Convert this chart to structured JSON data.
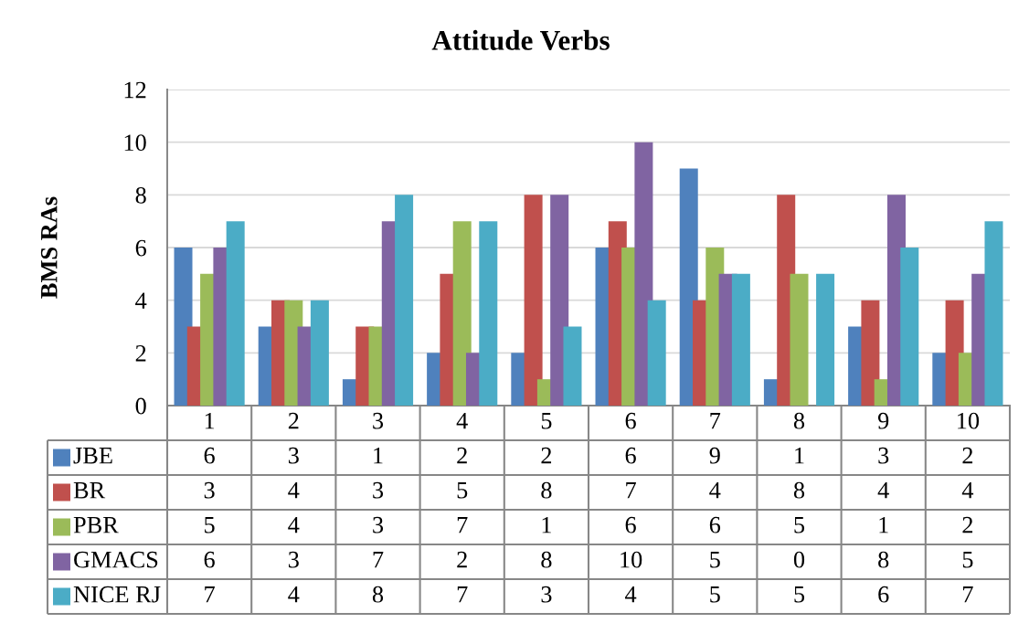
{
  "chart_data": {
    "type": "bar",
    "title": "Attitude Verbs",
    "ylabel": "BMS RAs",
    "categories": [
      "1",
      "2",
      "3",
      "4",
      "5",
      "6",
      "7",
      "8",
      "9",
      "10"
    ],
    "series": [
      {
        "name": "JBE",
        "color": "#4f81bd",
        "values": [
          6,
          3,
          1,
          2,
          2,
          6,
          9,
          1,
          3,
          2
        ]
      },
      {
        "name": "BR",
        "color": "#c0504d",
        "values": [
          3,
          4,
          3,
          5,
          8,
          7,
          4,
          8,
          4,
          4
        ]
      },
      {
        "name": "PBR",
        "color": "#9bbb59",
        "values": [
          5,
          4,
          3,
          7,
          1,
          6,
          6,
          5,
          1,
          2
        ]
      },
      {
        "name": "GMACS",
        "color": "#8064a2",
        "values": [
          6,
          3,
          7,
          2,
          8,
          10,
          5,
          0,
          8,
          5
        ]
      },
      {
        "name": "NICE RJ",
        "color": "#4bacc6",
        "values": [
          7,
          4,
          8,
          7,
          3,
          4,
          5,
          5,
          6,
          7
        ]
      }
    ],
    "ylim": [
      0,
      12
    ],
    "yticks": [
      0,
      2,
      4,
      6,
      8,
      10,
      12
    ],
    "grid": "y",
    "legend": "bottom",
    "data_labels": true
  }
}
